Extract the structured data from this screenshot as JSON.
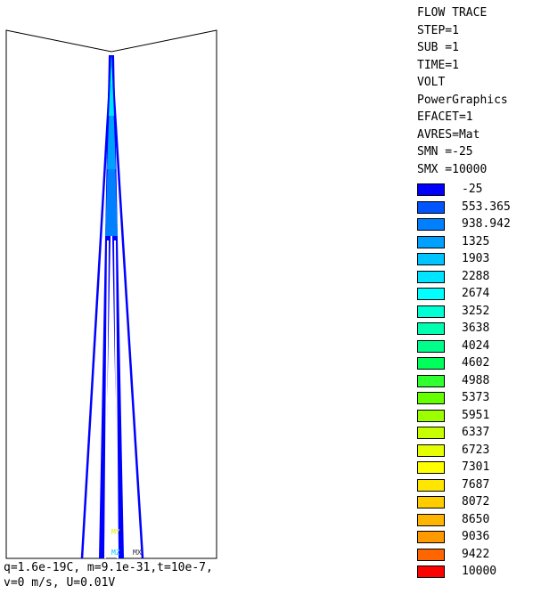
{
  "legend_header": [
    "FLOW TRACE",
    "STEP=1",
    "SUB =1",
    "TIME=1",
    "VOLT",
    "PowerGraphics",
    "EFACET=1",
    "AVRES=Mat",
    "SMN =-25",
    "SMX =10000"
  ],
  "legend_scale": [
    {
      "value": "-25",
      "color": "#0000ff"
    },
    {
      "value": "553.365",
      "color": "#0055ff"
    },
    {
      "value": "938.942",
      "color": "#0080ff"
    },
    {
      "value": "1325",
      "color": "#00a0ff"
    },
    {
      "value": "1903",
      "color": "#00c4ff"
    },
    {
      "value": "2288",
      "color": "#00e4ff"
    },
    {
      "value": "2674",
      "color": "#00ffff"
    },
    {
      "value": "3252",
      "color": "#00ffd2"
    },
    {
      "value": "3638",
      "color": "#00ffb0"
    },
    {
      "value": "4024",
      "color": "#00ff8a"
    },
    {
      "value": "4602",
      "color": "#00ff5a"
    },
    {
      "value": "4988",
      "color": "#30ff30"
    },
    {
      "value": "5373",
      "color": "#66ff00"
    },
    {
      "value": "5951",
      "color": "#9cff00"
    },
    {
      "value": "6337",
      "color": "#c8ff00"
    },
    {
      "value": "6723",
      "color": "#e6ff00"
    },
    {
      "value": "7301",
      "color": "#ffff00"
    },
    {
      "value": "7687",
      "color": "#ffe600"
    },
    {
      "value": "8072",
      "color": "#ffcc00"
    },
    {
      "value": "8650",
      "color": "#ffb400"
    },
    {
      "value": "9036",
      "color": "#ff9900"
    },
    {
      "value": "9422",
      "color": "#ff6600"
    },
    {
      "value": "10000",
      "color": "#ff0000"
    }
  ],
  "caption": [
    "q=1.6e-19C, m=9.1e-31,t=10e-7,",
    "v=0 m/s, U=0.01V"
  ],
  "triad": {
    "y": "MY",
    "z": "MZ",
    "x": "MX"
  },
  "colors": {
    "outline": "#000000",
    "trace_dark": "#0000ff",
    "trace_mid": "#0080ff",
    "trace_light": "#00e4ff",
    "trace_tip": "#00ffd2"
  }
}
